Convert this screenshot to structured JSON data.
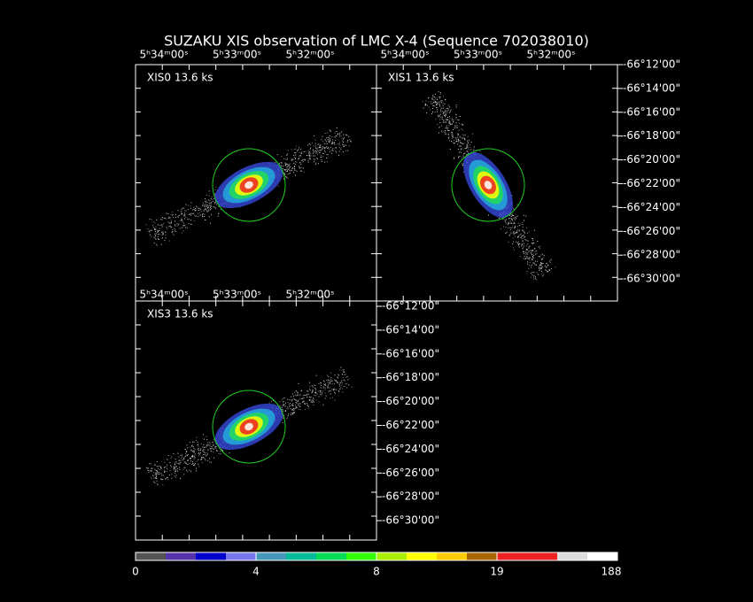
{
  "title": "SUZAKU XIS observation of LMC X-4  (Sequence 702038010)",
  "panels": [
    {
      "label": "XIS0 13.6 ks",
      "ra_labels": [
        "5ʰ34ᵐ00ˢ",
        "5ʰ33ᵐ00ˢ",
        "5ʰ32ᵐ00ˢ"
      ]
    },
    {
      "label": "XIS1 13.6 ks",
      "ra_labels": [
        "5ʰ34ᵐ00ˢ",
        "5ʰ33ᵐ00ˢ",
        "5ʰ32ᵐ00ˢ"
      ],
      "dec_labels": [
        "-66°12'00\"",
        "-66°14'00\"",
        "-66°16'00\"",
        "-66°18'00\"",
        "-66°20'00\"",
        "-66°22'00\"",
        "-66°24'00\"",
        "-66°26'00\"",
        "-66°28'00\"",
        "-66°30'00\""
      ]
    },
    {
      "label": "XIS3 13.6 ks",
      "ra_labels": [
        "5ʰ34ᵐ00ˢ",
        "5ʰ33ᵐ00ˢ",
        "5ʰ32ᵐ00ˢ"
      ],
      "dec_labels": [
        "-66°12'00\"",
        "-66°14'00\"",
        "-66°16'00\"",
        "-66°18'00\"",
        "-66°20'00\"",
        "-66°22'00\"",
        "-66°24'00\"",
        "-66°26'00\"",
        "-66°28'00\"",
        "-66°30'00\""
      ]
    }
  ],
  "colorbar": {
    "ticks": [
      0,
      4,
      8,
      19,
      188
    ],
    "colors": [
      "#555555",
      "#5533aa",
      "#0000cc",
      "#7777ee",
      "#4499bb",
      "#00bb99",
      "#00dd55",
      "#33ff00",
      "#aaee00",
      "#ffff00",
      "#ffcc00",
      "#aa6600",
      "#ee2222",
      "#ee2222",
      "#dddddd",
      "#ffffff"
    ]
  }
}
